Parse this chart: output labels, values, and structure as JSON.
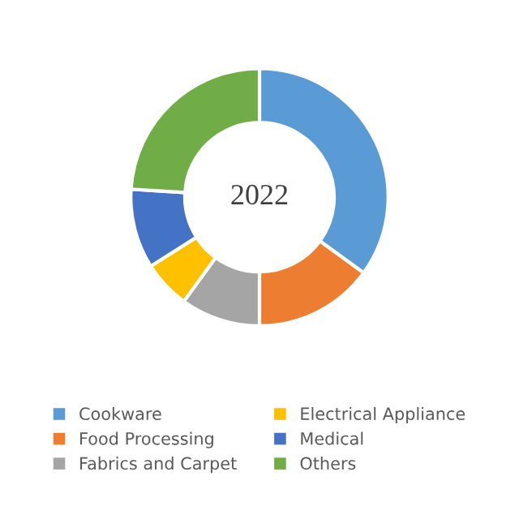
{
  "chart_data": {
    "type": "donut",
    "title": "2022",
    "categories": [
      "Cookware",
      "Food Processing",
      "Fabrics and Carpet",
      "Electrical Appliance",
      "Medical",
      "Others"
    ],
    "values": [
      35,
      15,
      10,
      6,
      10,
      24
    ],
    "colors": [
      "#5b9bd5",
      "#ed7d31",
      "#a5a5a5",
      "#ffc000",
      "#4472c4",
      "#70ad47"
    ],
    "legend": "bottom"
  }
}
